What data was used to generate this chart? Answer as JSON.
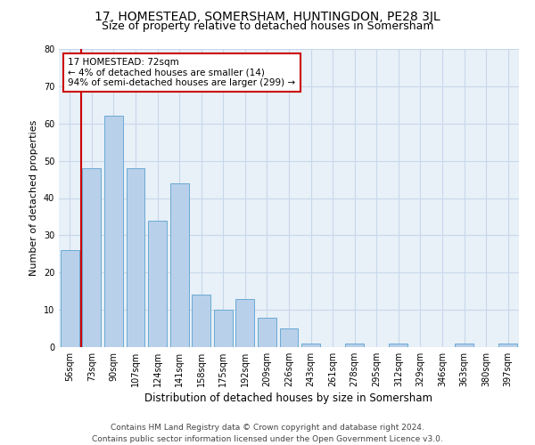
{
  "title": "17, HOMESTEAD, SOMERSHAM, HUNTINGDON, PE28 3JL",
  "subtitle": "Size of property relative to detached houses in Somersham",
  "xlabel": "Distribution of detached houses by size in Somersham",
  "ylabel": "Number of detached properties",
  "bar_labels": [
    "56sqm",
    "73sqm",
    "90sqm",
    "107sqm",
    "124sqm",
    "141sqm",
    "158sqm",
    "175sqm",
    "192sqm",
    "209sqm",
    "226sqm",
    "243sqm",
    "261sqm",
    "278sqm",
    "295sqm",
    "312sqm",
    "329sqm",
    "346sqm",
    "363sqm",
    "380sqm",
    "397sqm"
  ],
  "bar_values": [
    26,
    48,
    62,
    48,
    34,
    44,
    14,
    10,
    13,
    8,
    5,
    1,
    0,
    1,
    0,
    1,
    0,
    0,
    1,
    0,
    1
  ],
  "bar_color": "#b8d0ea",
  "bar_edge_color": "#6aaad4",
  "vline_color": "#cc0000",
  "annotation_text": "17 HOMESTEAD: 72sqm\n← 4% of detached houses are smaller (14)\n94% of semi-detached houses are larger (299) →",
  "annotation_box_facecolor": "#ffffff",
  "annotation_box_edgecolor": "#cc0000",
  "ylim": [
    0,
    80
  ],
  "yticks": [
    0,
    10,
    20,
    30,
    40,
    50,
    60,
    70,
    80
  ],
  "grid_color": "#c8d8ea",
  "bg_color": "#e8f0f8",
  "footer": "Contains HM Land Registry data © Crown copyright and database right 2024.\nContains public sector information licensed under the Open Government Licence v3.0.",
  "title_fontsize": 10,
  "subtitle_fontsize": 9,
  "xlabel_fontsize": 8.5,
  "ylabel_fontsize": 8,
  "tick_fontsize": 7,
  "footer_fontsize": 6.5,
  "annotation_fontsize": 7.5
}
